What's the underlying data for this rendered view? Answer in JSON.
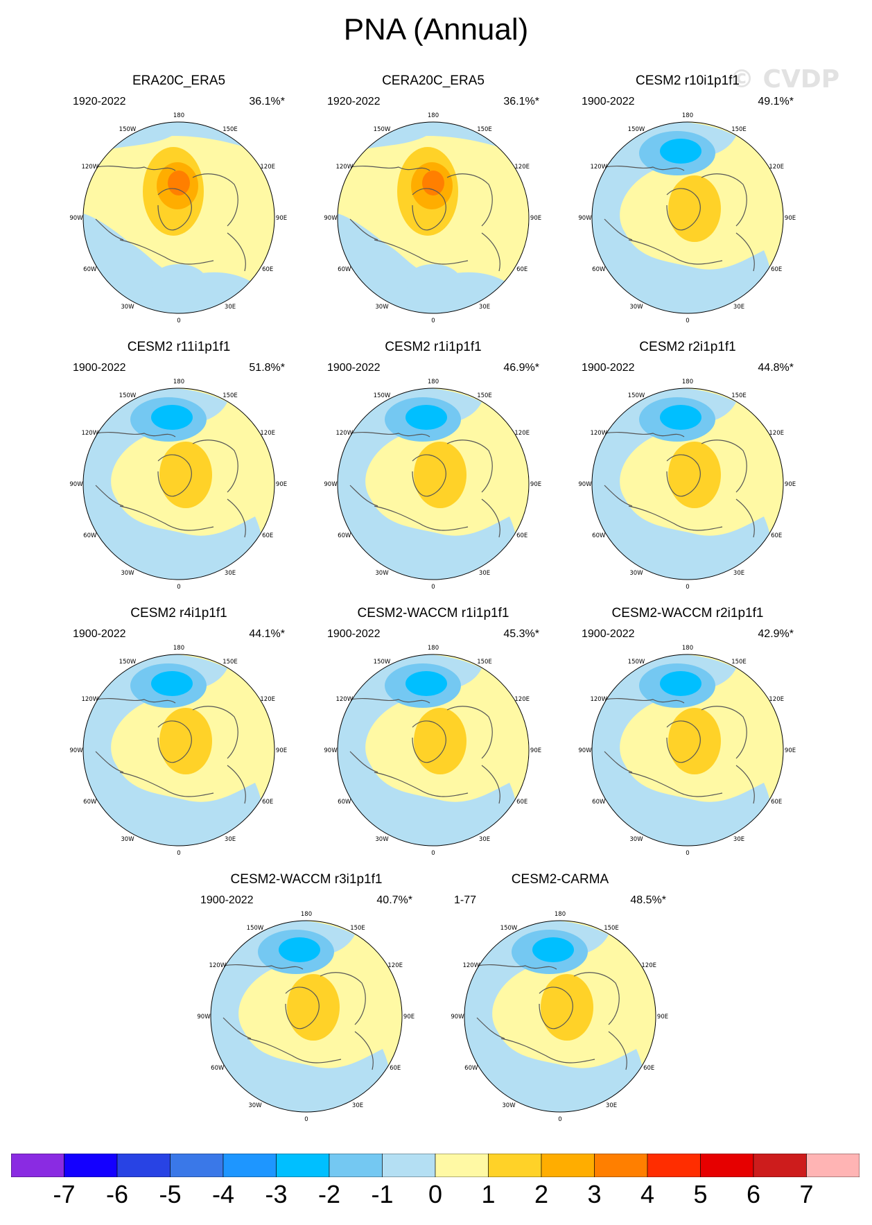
{
  "title": "PNA (Annual)",
  "watermark": "© CVDP",
  "longitude_labels": [
    "180",
    "150E",
    "120E",
    "90E",
    "60E",
    "30E",
    "0",
    "30W",
    "60W",
    "90W",
    "120W",
    "150W"
  ],
  "colors": {
    "blue3": "#00bfff",
    "blue2": "#74c8f2",
    "blue1": "#b4dff3",
    "yellow0": "#fff9a4",
    "yellow1": "#ffd228",
    "yellow2": "#ffad00",
    "orange3": "#ff7f00",
    "coast": "#555555"
  },
  "chart_data": [
    {
      "type": "map",
      "name": "ERA20C_ERA5",
      "years": "1920-2022",
      "percent": "36.1%*",
      "pattern": "obs"
    },
    {
      "type": "map",
      "name": "CERA20C_ERA5",
      "years": "1920-2022",
      "percent": "36.1%*",
      "pattern": "obs"
    },
    {
      "type": "map",
      "name": "CESM2 r10i1p1f1",
      "years": "1900-2022",
      "percent": "49.1%*",
      "pattern": "model"
    },
    {
      "type": "map",
      "name": "CESM2 r11i1p1f1",
      "years": "1900-2022",
      "percent": "51.8%*",
      "pattern": "model"
    },
    {
      "type": "map",
      "name": "CESM2 r1i1p1f1",
      "years": "1900-2022",
      "percent": "46.9%*",
      "pattern": "model"
    },
    {
      "type": "map",
      "name": "CESM2 r2i1p1f1",
      "years": "1900-2022",
      "percent": "44.8%*",
      "pattern": "model"
    },
    {
      "type": "map",
      "name": "CESM2 r4i1p1f1",
      "years": "1900-2022",
      "percent": "44.1%*",
      "pattern": "model"
    },
    {
      "type": "map",
      "name": "CESM2-WACCM r1i1p1f1",
      "years": "1900-2022",
      "percent": "45.3%*",
      "pattern": "model"
    },
    {
      "type": "map",
      "name": "CESM2-WACCM r2i1p1f1",
      "years": "1900-2022",
      "percent": "42.9%*",
      "pattern": "model"
    },
    {
      "type": "map",
      "name": "CESM2-WACCM r3i1p1f1",
      "years": "1900-2022",
      "percent": "40.7%*",
      "pattern": "model"
    },
    {
      "type": "map",
      "name": "CESM2-CARMA",
      "years": "1-77",
      "percent": "48.5%*",
      "pattern": "model"
    }
  ],
  "colorbar": {
    "labels": [
      "-7",
      "-6",
      "-5",
      "-4",
      "-3",
      "-2",
      "-1",
      "0",
      "1",
      "2",
      "3",
      "4",
      "5",
      "6",
      "7"
    ],
    "colors": [
      "#8a2be2",
      "#1400ff",
      "#2843e4",
      "#3a78e8",
      "#1e96ff",
      "#00bfff",
      "#74c8f2",
      "#b4dff3",
      "#fff9a4",
      "#ffd228",
      "#ffad00",
      "#ff7f00",
      "#ff2d00",
      "#e60000",
      "#cd1c1c",
      "#ffb4b4"
    ]
  }
}
